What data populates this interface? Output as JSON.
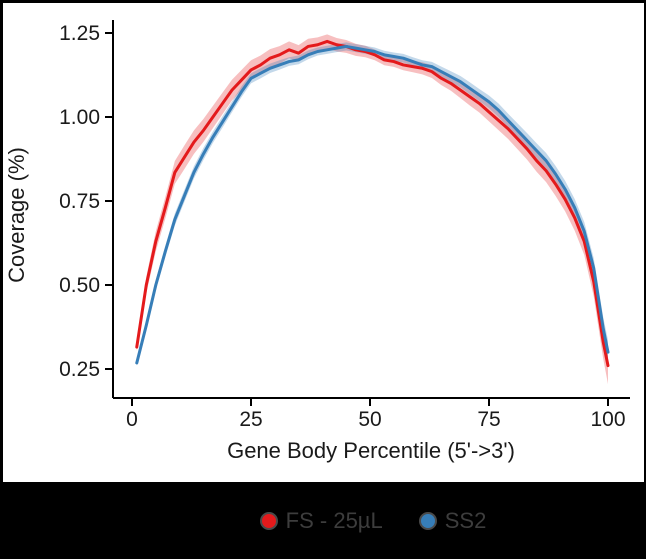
{
  "chart_data": {
    "type": "line",
    "title": "",
    "xlabel": "Gene Body Percentile (5'->3')",
    "ylabel": "Coverage (%)",
    "xlim": [
      0,
      100
    ],
    "ylim": [
      0.2,
      1.3
    ],
    "grid": false,
    "legend_position": "bottom",
    "xticks": {
      "values": [
        0,
        25,
        50,
        75,
        100
      ],
      "labels": [
        "0",
        "25",
        "50",
        "75",
        "100"
      ]
    },
    "yticks": {
      "values": [
        0.25,
        0.5,
        0.75,
        1.0,
        1.25
      ],
      "labels": [
        "0.25",
        "0.50",
        "0.75",
        "1.00",
        "1.25"
      ]
    },
    "x": [
      1,
      3,
      5,
      7,
      9,
      11,
      13,
      15,
      17,
      19,
      21,
      23,
      25,
      27,
      29,
      31,
      33,
      35,
      37,
      39,
      41,
      43,
      45,
      47,
      49,
      51,
      53,
      55,
      57,
      59,
      61,
      63,
      65,
      67,
      69,
      71,
      73,
      75,
      77,
      79,
      81,
      83,
      85,
      87,
      89,
      91,
      93,
      95,
      97,
      99,
      100
    ],
    "series": [
      {
        "name": "FS - 25µL",
        "color": "#E41A1C",
        "fill": "rgba(228,26,28,0.28)",
        "values": [
          0.315,
          0.5,
          0.63,
          0.73,
          0.835,
          0.88,
          0.925,
          0.96,
          1.0,
          1.04,
          1.08,
          1.11,
          1.14,
          1.155,
          1.175,
          1.185,
          1.2,
          1.19,
          1.21,
          1.215,
          1.225,
          1.215,
          1.21,
          1.2,
          1.195,
          1.185,
          1.17,
          1.165,
          1.155,
          1.15,
          1.145,
          1.135,
          1.115,
          1.1,
          1.08,
          1.06,
          1.04,
          1.015,
          0.99,
          0.965,
          0.935,
          0.905,
          0.87,
          0.84,
          0.8,
          0.755,
          0.7,
          0.63,
          0.51,
          0.33,
          0.26
        ],
        "ribbon_halfwidth": [
          0.012,
          0.025,
          0.03,
          0.032,
          0.034,
          0.035,
          0.035,
          0.034,
          0.033,
          0.032,
          0.031,
          0.03,
          0.029,
          0.028,
          0.027,
          0.026,
          0.025,
          0.024,
          0.023,
          0.022,
          0.021,
          0.02,
          0.019,
          0.018,
          0.017,
          0.016,
          0.016,
          0.016,
          0.016,
          0.017,
          0.018,
          0.019,
          0.02,
          0.022,
          0.024,
          0.026,
          0.027,
          0.028,
          0.029,
          0.03,
          0.031,
          0.032,
          0.033,
          0.034,
          0.035,
          0.036,
          0.038,
          0.04,
          0.044,
          0.05,
          0.055
        ]
      },
      {
        "name": "SS2",
        "color": "#377EB8",
        "fill": "rgba(55,126,184,0.30)",
        "values": [
          0.268,
          0.38,
          0.5,
          0.6,
          0.695,
          0.765,
          0.835,
          0.89,
          0.94,
          0.985,
          1.03,
          1.075,
          1.115,
          1.13,
          1.145,
          1.155,
          1.165,
          1.17,
          1.185,
          1.195,
          1.2,
          1.205,
          1.21,
          1.205,
          1.2,
          1.195,
          1.185,
          1.18,
          1.175,
          1.165,
          1.155,
          1.15,
          1.135,
          1.12,
          1.105,
          1.085,
          1.065,
          1.045,
          1.02,
          0.99,
          0.96,
          0.93,
          0.9,
          0.87,
          0.83,
          0.785,
          0.73,
          0.66,
          0.55,
          0.37,
          0.3
        ],
        "ribbon_halfwidth": [
          0.008,
          0.013,
          0.016,
          0.017,
          0.018,
          0.018,
          0.018,
          0.018,
          0.017,
          0.017,
          0.016,
          0.016,
          0.015,
          0.015,
          0.014,
          0.014,
          0.013,
          0.013,
          0.013,
          0.012,
          0.012,
          0.012,
          0.012,
          0.012,
          0.012,
          0.012,
          0.012,
          0.012,
          0.013,
          0.013,
          0.014,
          0.014,
          0.015,
          0.016,
          0.017,
          0.018,
          0.018,
          0.019,
          0.02,
          0.02,
          0.021,
          0.022,
          0.022,
          0.023,
          0.024,
          0.025,
          0.026,
          0.028,
          0.03,
          0.034,
          0.036
        ]
      }
    ]
  },
  "colors": {
    "frame": "#000000",
    "panel": "#ffffff",
    "axis": "#000000",
    "tick_label": "#1a1a1a",
    "legend_background": "#000000",
    "legend_text": "#3d3d3d"
  }
}
